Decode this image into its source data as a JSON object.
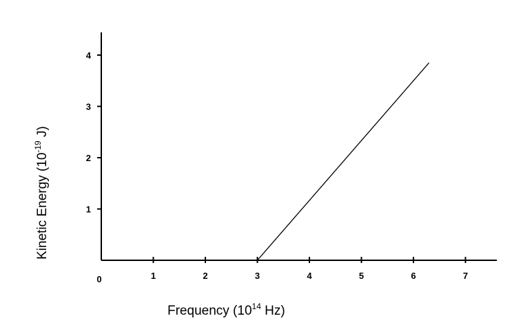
{
  "chart_data": {
    "type": "line",
    "title": "",
    "xlabel": {
      "prefix": "Frequency (10",
      "exponent": "14",
      "suffix": " Hz)"
    },
    "ylabel": {
      "prefix": "Kinetic Energy (10",
      "exponent": "-19",
      "suffix": " J)"
    },
    "xlim": [
      0,
      7.8
    ],
    "ylim": [
      0,
      4.3
    ],
    "origin_label": "0",
    "x_ticks": [
      {
        "value": 1,
        "label": "1"
      },
      {
        "value": 2,
        "label": "2"
      },
      {
        "value": 3,
        "label": "3"
      },
      {
        "value": 4,
        "label": "4"
      },
      {
        "value": 5,
        "label": "5"
      },
      {
        "value": 6,
        "label": "6"
      },
      {
        "value": 7,
        "label": "7"
      }
    ],
    "y_ticks": [
      {
        "value": 1,
        "label": "1"
      },
      {
        "value": 2,
        "label": "2"
      },
      {
        "value": 3,
        "label": "3"
      },
      {
        "value": 4,
        "label": "4"
      }
    ],
    "grid": false,
    "legend": "none",
    "colors": {
      "axis": "#000000",
      "line": "#000000"
    },
    "series": [
      {
        "x": [
          3.0,
          6.3
        ],
        "y": [
          0.0,
          3.85
        ]
      }
    ]
  }
}
